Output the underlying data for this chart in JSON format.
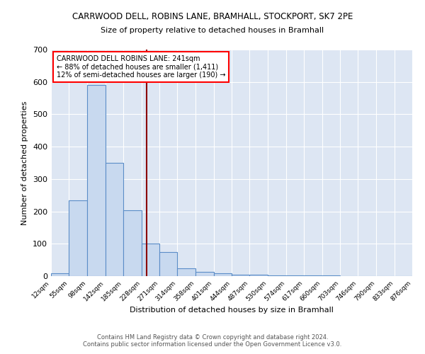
{
  "title1": "CARRWOOD DELL, ROBINS LANE, BRAMHALL, STOCKPORT, SK7 2PE",
  "title2": "Size of property relative to detached houses in Bramhall",
  "xlabel": "Distribution of detached houses by size in Bramhall",
  "ylabel": "Number of detached properties",
  "bar_color": "#c8d9ef",
  "bar_edge_color": "#5b8dc8",
  "background_color": "#dde6f3",
  "bin_edges": [
    12,
    55,
    98,
    142,
    185,
    228,
    271,
    314,
    358,
    401,
    444,
    487,
    530,
    574,
    617,
    660,
    703,
    746,
    790,
    833,
    876
  ],
  "bar_heights": [
    8,
    235,
    590,
    350,
    203,
    100,
    75,
    25,
    13,
    8,
    5,
    5,
    2,
    2,
    2,
    2,
    0,
    0,
    0,
    0
  ],
  "red_line_x": 241,
  "annotation_line1": "CARRWOOD DELL ROBINS LANE: 241sqm",
  "annotation_line2": "← 88% of detached houses are smaller (1,411)",
  "annotation_line3": "12% of semi-detached houses are larger (190) →",
  "ylim": [
    0,
    700
  ],
  "yticks": [
    0,
    100,
    200,
    300,
    400,
    500,
    600,
    700
  ],
  "footnote1": "Contains HM Land Registry data © Crown copyright and database right 2024.",
  "footnote2": "Contains public sector information licensed under the Open Government Licence v3.0."
}
